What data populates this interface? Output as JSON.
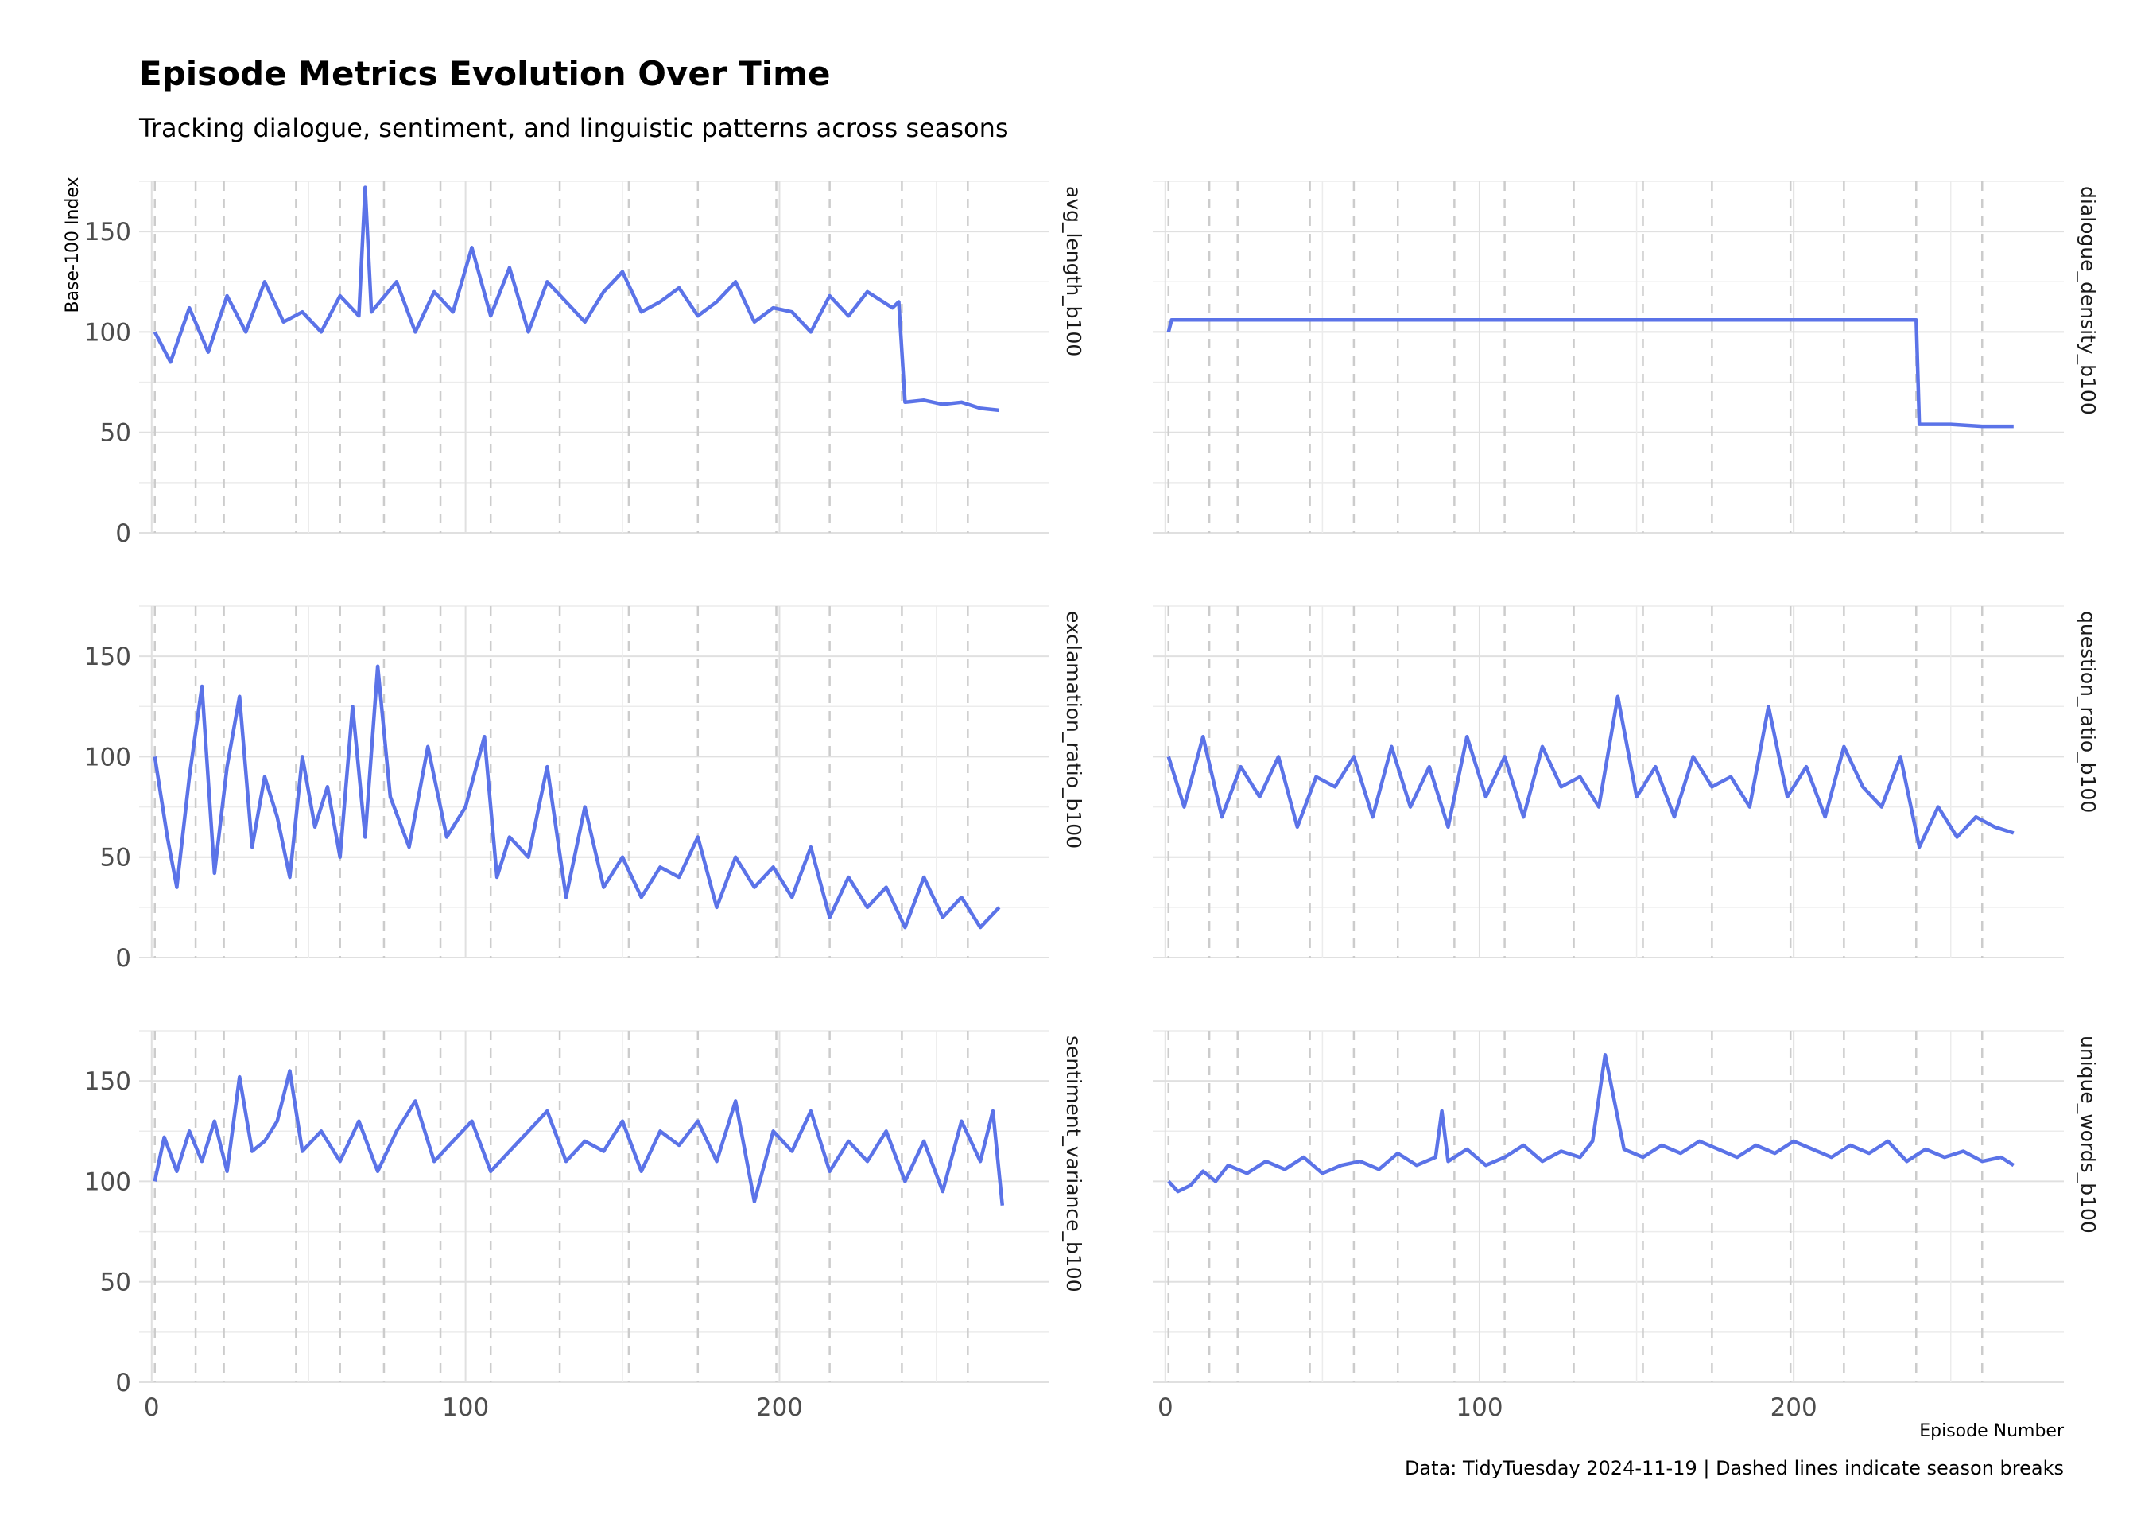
{
  "title": "Episode Metrics Evolution Over Time",
  "subtitle": "Tracking dialogue, sentiment, and linguistic patterns across seasons",
  "caption": "Data: TidyTuesday 2024-11-19 | Dashed lines indicate season breaks",
  "colors": {
    "line": "#5b73e8",
    "grid": "#e0e0e0",
    "season_break": "#cccccc"
  },
  "chart_data": {
    "type": "line",
    "facets": true,
    "xlabel": "Episode Number",
    "ylabel": "Base-100 Index",
    "xlim": [
      -4,
      286
    ],
    "ylim": [
      0,
      175
    ],
    "x_ticks": [
      0,
      100,
      200
    ],
    "y_ticks": [
      0,
      50,
      100,
      150
    ],
    "season_breaks": [
      1,
      14,
      23,
      46,
      60,
      74,
      92,
      108,
      130,
      152,
      174,
      199,
      216,
      239,
      260
    ],
    "panels": [
      {
        "name": "avg_length_b100",
        "x": [
          1,
          6,
          12,
          18,
          24,
          30,
          36,
          42,
          48,
          54,
          60,
          66,
          68,
          70,
          78,
          84,
          90,
          96,
          102,
          108,
          114,
          120,
          126,
          132,
          138,
          144,
          150,
          156,
          162,
          168,
          174,
          180,
          186,
          192,
          198,
          204,
          210,
          216,
          222,
          228,
          236,
          238,
          240,
          246,
          252,
          258,
          264,
          270
        ],
        "values": [
          100,
          85,
          112,
          90,
          118,
          100,
          125,
          105,
          110,
          100,
          118,
          108,
          172,
          110,
          125,
          100,
          120,
          110,
          142,
          108,
          132,
          100,
          125,
          115,
          105,
          120,
          130,
          110,
          115,
          122,
          108,
          115,
          125,
          105,
          112,
          110,
          100,
          118,
          108,
          120,
          112,
          115,
          65,
          66,
          64,
          65,
          62,
          61
        ]
      },
      {
        "name": "dialogue_density_b100",
        "x": [
          1,
          2,
          3,
          50,
          100,
          150,
          200,
          238,
          239,
          240,
          250,
          260,
          270
        ],
        "values": [
          100,
          106,
          106,
          106,
          106,
          106,
          106,
          106,
          106,
          54,
          54,
          53,
          53
        ]
      },
      {
        "name": "exclamation_ratio_b100",
        "x": [
          1,
          5,
          8,
          12,
          16,
          20,
          24,
          28,
          32,
          36,
          40,
          44,
          48,
          52,
          56,
          60,
          64,
          68,
          72,
          76,
          82,
          88,
          94,
          100,
          106,
          110,
          114,
          120,
          126,
          132,
          138,
          144,
          150,
          156,
          162,
          168,
          174,
          180,
          186,
          192,
          198,
          204,
          210,
          216,
          222,
          228,
          234,
          240,
          246,
          252,
          258,
          264,
          270
        ],
        "values": [
          100,
          60,
          35,
          90,
          135,
          42,
          95,
          130,
          55,
          90,
          70,
          40,
          100,
          65,
          85,
          50,
          125,
          60,
          145,
          80,
          55,
          105,
          60,
          75,
          110,
          40,
          60,
          50,
          95,
          30,
          75,
          35,
          50,
          30,
          45,
          40,
          60,
          25,
          50,
          35,
          45,
          30,
          55,
          20,
          40,
          25,
          35,
          15,
          40,
          20,
          30,
          15,
          25
        ]
      },
      {
        "name": "question_ratio_b100",
        "x": [
          1,
          6,
          12,
          18,
          24,
          30,
          36,
          42,
          48,
          54,
          60,
          66,
          72,
          78,
          84,
          90,
          96,
          102,
          108,
          114,
          120,
          126,
          132,
          138,
          144,
          150,
          156,
          162,
          168,
          174,
          180,
          186,
          192,
          198,
          204,
          210,
          216,
          222,
          228,
          234,
          240,
          246,
          252,
          258,
          264,
          270
        ],
        "values": [
          100,
          75,
          110,
          70,
          95,
          80,
          100,
          65,
          90,
          85,
          100,
          70,
          105,
          75,
          95,
          65,
          110,
          80,
          100,
          70,
          105,
          85,
          90,
          75,
          130,
          80,
          95,
          70,
          100,
          85,
          90,
          75,
          125,
          80,
          95,
          70,
          105,
          85,
          75,
          100,
          55,
          75,
          60,
          70,
          65,
          62
        ]
      },
      {
        "name": "sentiment_variance_b100",
        "x": [
          1,
          4,
          8,
          12,
          16,
          20,
          24,
          28,
          32,
          36,
          40,
          44,
          48,
          54,
          60,
          66,
          72,
          78,
          84,
          90,
          96,
          102,
          108,
          114,
          120,
          126,
          132,
          138,
          144,
          150,
          156,
          162,
          168,
          174,
          180,
          186,
          192,
          198,
          204,
          210,
          216,
          222,
          228,
          234,
          240,
          246,
          252,
          258,
          264,
          268,
          271
        ],
        "values": [
          100,
          122,
          105,
          125,
          110,
          130,
          105,
          152,
          115,
          120,
          130,
          155,
          115,
          125,
          110,
          130,
          105,
          125,
          140,
          110,
          120,
          130,
          105,
          115,
          125,
          135,
          110,
          120,
          115,
          130,
          105,
          125,
          118,
          130,
          110,
          140,
          90,
          125,
          115,
          135,
          105,
          120,
          110,
          125,
          100,
          120,
          95,
          130,
          110,
          135,
          88
        ]
      },
      {
        "name": "unique_words_b100",
        "x": [
          1,
          4,
          8,
          12,
          16,
          20,
          26,
          32,
          38,
          44,
          50,
          56,
          62,
          68,
          74,
          80,
          86,
          88,
          90,
          96,
          102,
          108,
          114,
          120,
          126,
          132,
          136,
          140,
          146,
          152,
          158,
          164,
          170,
          176,
          182,
          188,
          194,
          200,
          206,
          212,
          218,
          224,
          230,
          236,
          242,
          248,
          254,
          260,
          266,
          270
        ],
        "values": [
          100,
          95,
          98,
          105,
          100,
          108,
          104,
          110,
          106,
          112,
          104,
          108,
          110,
          106,
          114,
          108,
          112,
          135,
          110,
          116,
          108,
          112,
          118,
          110,
          115,
          112,
          120,
          163,
          116,
          112,
          118,
          114,
          120,
          116,
          112,
          118,
          114,
          120,
          116,
          112,
          118,
          114,
          120,
          110,
          116,
          112,
          115,
          110,
          112,
          108
        ]
      }
    ]
  }
}
